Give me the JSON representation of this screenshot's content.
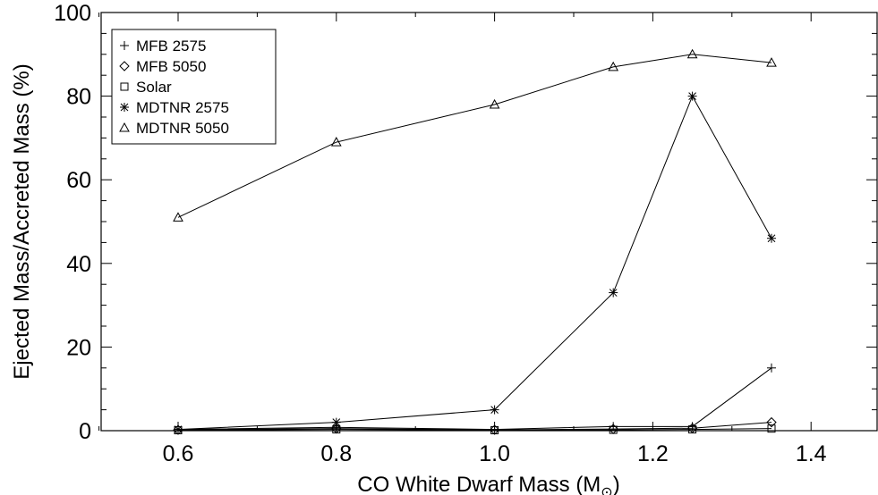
{
  "chart_data": {
    "type": "line",
    "xlabel": "CO White Dwarf Mass (M",
    "xlabel_sub": "⊙",
    "xlabel_close": ")",
    "ylabel": "Ejected Mass/Accreted Mass (%)",
    "xlim": [
      0.5,
      1.5
    ],
    "ylim": [
      0,
      100
    ],
    "xticks": [
      "0.6",
      "0.8",
      "1.0",
      "1.2",
      "1.4"
    ],
    "yticks": [
      "0",
      "20",
      "40",
      "60",
      "80",
      "100"
    ],
    "legend_position": "top-left",
    "series": [
      {
        "name": "MFB 2575",
        "marker": "plus",
        "x": [
          0.6,
          0.8,
          1.0,
          1.15,
          1.25,
          1.35
        ],
        "y": [
          0.3,
          0.8,
          0.3,
          1.0,
          1.0,
          15.0
        ]
      },
      {
        "name": "MFB 5050",
        "marker": "diamond",
        "x": [
          0.6,
          0.8,
          1.0,
          1.15,
          1.25,
          1.35
        ],
        "y": [
          0.2,
          0.5,
          0.2,
          0.4,
          0.6,
          2.0
        ]
      },
      {
        "name": "Solar",
        "marker": "square",
        "x": [
          0.6,
          0.8,
          1.0,
          1.15,
          1.25,
          1.35
        ],
        "y": [
          0.1,
          0.3,
          0.1,
          0.2,
          0.3,
          0.5
        ]
      },
      {
        "name": "MDTNR 2575",
        "marker": "asterisk",
        "x": [
          0.6,
          0.8,
          1.0,
          1.15,
          1.25,
          1.35
        ],
        "y": [
          0.3,
          2.0,
          5.0,
          33.0,
          80.0,
          46.0
        ]
      },
      {
        "name": "MDTNR 5050",
        "marker": "triangle",
        "x": [
          0.6,
          0.8,
          1.0,
          1.15,
          1.25,
          1.35
        ],
        "y": [
          51.0,
          69.0,
          78.0,
          87.0,
          90.0,
          88.0
        ]
      }
    ]
  }
}
